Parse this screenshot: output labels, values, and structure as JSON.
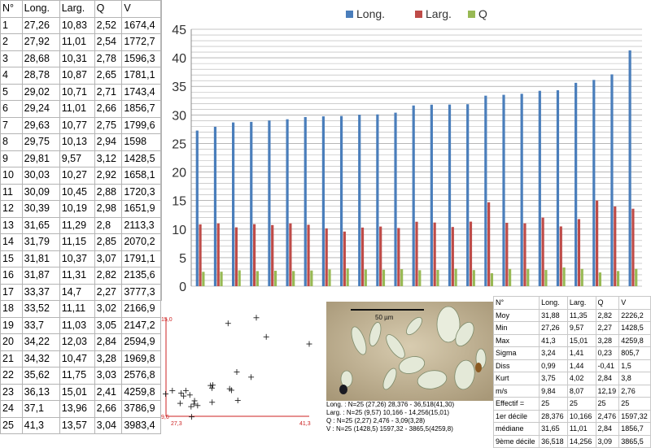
{
  "table": {
    "headers": [
      "N°",
      "Long.",
      "Larg.",
      "Q",
      "V"
    ],
    "rows": [
      [
        "1",
        "27,26",
        "10,83",
        "2,52",
        "1674,4"
      ],
      [
        "2",
        "27,92",
        "11,01",
        "2,54",
        "1772,7"
      ],
      [
        "3",
        "28,68",
        "10,31",
        "2,78",
        "1596,3"
      ],
      [
        "4",
        "28,78",
        "10,87",
        "2,65",
        "1781,1"
      ],
      [
        "5",
        "29,02",
        "10,71",
        "2,71",
        "1743,4"
      ],
      [
        "6",
        "29,24",
        "11,01",
        "2,66",
        "1856,7"
      ],
      [
        "7",
        "29,63",
        "10,77",
        "2,75",
        "1799,6"
      ],
      [
        "8",
        "29,75",
        "10,13",
        "2,94",
        "1598"
      ],
      [
        "9",
        "29,81",
        "9,57",
        "3,12",
        "1428,5"
      ],
      [
        "10",
        "30,03",
        "10,27",
        "2,92",
        "1658,1"
      ],
      [
        "11",
        "30,09",
        "10,45",
        "2,88",
        "1720,3"
      ],
      [
        "12",
        "30,39",
        "10,19",
        "2,98",
        "1651,9"
      ],
      [
        "13",
        "31,65",
        "11,29",
        "2,8",
        "2113,3"
      ],
      [
        "14",
        "31,79",
        "11,15",
        "2,85",
        "2070,2"
      ],
      [
        "15",
        "31,81",
        "10,37",
        "3,07",
        "1791,1"
      ],
      [
        "16",
        "31,87",
        "11,31",
        "2,82",
        "2135,6"
      ],
      [
        "17",
        "33,37",
        "14,7",
        "2,27",
        "3777,3"
      ],
      [
        "18",
        "33,52",
        "11,11",
        "3,02",
        "2166,9"
      ],
      [
        "19",
        "33,7",
        "11,03",
        "3,05",
        "2147,2"
      ],
      [
        "20",
        "34,22",
        "12,03",
        "2,84",
        "2594,9"
      ],
      [
        "21",
        "34,32",
        "10,47",
        "3,28",
        "1969,8"
      ],
      [
        "22",
        "35,62",
        "11,75",
        "3,03",
        "2576,8"
      ],
      [
        "23",
        "36,13",
        "15,01",
        "2,41",
        "4259,8"
      ],
      [
        "24",
        "37,1",
        "13,96",
        "2,66",
        "3786,9"
      ],
      [
        "25",
        "41,3",
        "13,57",
        "3,04",
        "3983,4"
      ]
    ]
  },
  "chart_data": [
    {
      "type": "bar",
      "categories": [
        "1",
        "2",
        "3",
        "4",
        "5",
        "6",
        "7",
        "8",
        "9",
        "10",
        "11",
        "12",
        "13",
        "14",
        "15",
        "16",
        "17",
        "18",
        "19",
        "20",
        "21",
        "22",
        "23",
        "24",
        "25"
      ],
      "series": [
        {
          "name": "Long.",
          "color": "#4a7ebb",
          "values": [
            27.26,
            27.92,
            28.68,
            28.78,
            29.02,
            29.24,
            29.63,
            29.75,
            29.81,
            30.03,
            30.09,
            30.39,
            31.65,
            31.79,
            31.81,
            31.87,
            33.37,
            33.52,
            33.7,
            34.22,
            34.32,
            35.62,
            36.13,
            37.1,
            41.3
          ]
        },
        {
          "name": "Larg.",
          "color": "#be4b48",
          "values": [
            10.83,
            11.01,
            10.31,
            10.87,
            10.71,
            11.01,
            10.77,
            10.13,
            9.57,
            10.27,
            10.45,
            10.19,
            11.29,
            11.15,
            10.37,
            11.31,
            14.7,
            11.11,
            11.03,
            12.03,
            10.47,
            11.75,
            15.01,
            13.96,
            13.57
          ]
        },
        {
          "name": "Q",
          "color": "#98b954",
          "values": [
            2.52,
            2.54,
            2.78,
            2.65,
            2.71,
            2.66,
            2.75,
            2.94,
            3.12,
            2.92,
            2.88,
            2.98,
            2.8,
            2.85,
            3.07,
            2.82,
            2.27,
            3.02,
            3.05,
            2.84,
            3.28,
            3.03,
            2.41,
            2.66,
            3.04
          ]
        }
      ],
      "yticks": [
        "0",
        "5",
        "10",
        "15",
        "20",
        "25",
        "30",
        "35",
        "40",
        "45"
      ],
      "ylim": [
        0,
        45
      ],
      "legend": "top-center",
      "grid": true
    },
    {
      "type": "scatter",
      "x": [
        27.26,
        27.92,
        28.68,
        28.78,
        29.02,
        29.24,
        29.63,
        29.75,
        29.81,
        30.03,
        30.09,
        30.39,
        31.65,
        31.79,
        31.81,
        31.87,
        33.37,
        33.52,
        33.7,
        34.22,
        34.32,
        35.62,
        36.13,
        37.1,
        41.3
      ],
      "y": [
        10.83,
        11.01,
        10.31,
        10.87,
        10.71,
        11.01,
        10.77,
        10.13,
        9.57,
        10.27,
        10.45,
        10.19,
        11.29,
        11.15,
        10.37,
        11.31,
        14.7,
        11.11,
        11.03,
        12.03,
        10.47,
        11.75,
        15.01,
        13.96,
        13.57
      ],
      "xlim": [
        27.3,
        41.3
      ],
      "ylim": [
        9.6,
        15.0
      ],
      "x_min_label": "27,3",
      "x_max_label": "41,3",
      "y_min_label": "9,6",
      "y_max_label": "15,0",
      "color": "#cc2222"
    }
  ],
  "micro": {
    "scale_label": "50 µm",
    "legend_lines": [
      "Long. : N=25      (27,26) 28,376 - 36,518(41,30)",
      "Larg. : N=25      (9,57) 10,166 - 14,256(15,01)",
      "Q : N=25      (2,27) 2,476 - 3,09(3,28)",
      "V : N=25      (1428,5) 1597,32 - 3865,5(4259,8)"
    ]
  },
  "stats": {
    "headers": [
      "N°",
      "Long.",
      "Larg.",
      "Q",
      "V"
    ],
    "rows": [
      [
        "Moy",
        "31,88",
        "11,35",
        "2,82",
        "2226,2"
      ],
      [
        "Min",
        "27,26",
        "9,57",
        "2,27",
        "1428,5"
      ],
      [
        "Max",
        "41,3",
        "15,01",
        "3,28",
        "4259,8"
      ],
      [
        "Sigma",
        "3,24",
        "1,41",
        "0,23",
        "805,7"
      ],
      [
        "Diss",
        "0,99",
        "1,44",
        "-0,41",
        "1,5"
      ],
      [
        "Kurt",
        "3,75",
        "4,02",
        "2,84",
        "3,8"
      ],
      [
        "m/s",
        "9,84",
        "8,07",
        "12,19",
        "2,76"
      ],
      [
        "Effectif =",
        "25",
        "25",
        "25",
        "25"
      ],
      [
        "1er décile",
        "28,376",
        "10,166",
        "2,476",
        "1597,32"
      ],
      [
        "médiane",
        "31,65",
        "11,01",
        "2,84",
        "1856,7"
      ],
      [
        "9ème décile",
        "36,518",
        "14,256",
        "3,09",
        "3865,5"
      ]
    ]
  }
}
